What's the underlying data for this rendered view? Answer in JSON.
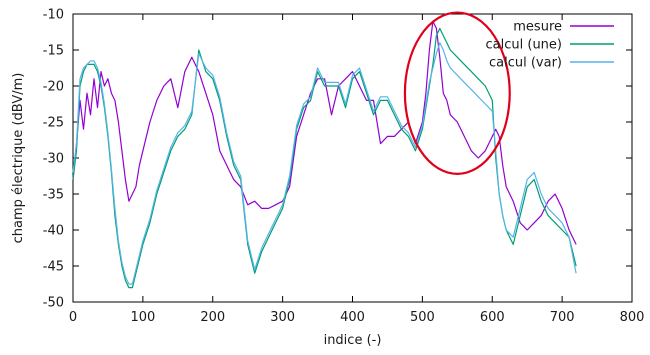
{
  "chart_data": {
    "type": "line",
    "title": "",
    "xlabel": "indice (-)",
    "ylabel": "champ électrique (dBV/m)",
    "xlim": [
      0,
      800
    ],
    "ylim": [
      -50,
      -10
    ],
    "xticks": [
      0,
      100,
      200,
      300,
      400,
      500,
      600,
      700,
      800
    ],
    "yticks": [
      -10,
      -15,
      -20,
      -25,
      -30,
      -35,
      -40,
      -45,
      -50
    ],
    "grid": false,
    "legend_position": "top-right",
    "annotation": {
      "shape": "ellipse",
      "color": "#e0001a",
      "center": [
        550,
        -21
      ],
      "radius": [
        75,
        11.2
      ]
    },
    "series": [
      {
        "name": "mesure",
        "color": "#9400d3",
        "x": [
          0,
          5,
          10,
          15,
          20,
          25,
          30,
          35,
          40,
          45,
          50,
          55,
          60,
          65,
          70,
          75,
          80,
          85,
          90,
          95,
          100,
          110,
          120,
          130,
          140,
          150,
          160,
          170,
          180,
          190,
          200,
          210,
          220,
          230,
          240,
          250,
          260,
          270,
          280,
          290,
          300,
          310,
          320,
          330,
          340,
          350,
          360,
          370,
          380,
          390,
          400,
          410,
          420,
          430,
          440,
          450,
          460,
          470,
          480,
          490,
          500,
          505,
          510,
          515,
          520,
          525,
          530,
          535,
          540,
          550,
          560,
          570,
          580,
          590,
          600,
          605,
          610,
          615,
          620,
          630,
          640,
          650,
          660,
          670,
          680,
          690,
          700,
          710,
          720
        ],
        "y": [
          -33,
          -28,
          -22,
          -26,
          -21,
          -24,
          -19,
          -23,
          -18,
          -20,
          -19,
          -21,
          -22,
          -25,
          -29,
          -33,
          -36,
          -35,
          -34,
          -31,
          -29,
          -25,
          -22,
          -20,
          -19,
          -23,
          -18,
          -16,
          -18,
          -21,
          -24,
          -29,
          -31,
          -33,
          -34,
          -36.5,
          -36,
          -37,
          -37,
          -36.5,
          -36,
          -34,
          -27,
          -24,
          -21,
          -19,
          -19,
          -24,
          -20,
          -19,
          -18,
          -20,
          -22,
          -22,
          -28,
          -27,
          -27,
          -26,
          -25,
          -28,
          -25,
          -21,
          -15,
          -11,
          -12,
          -16,
          -21,
          -22,
          -24,
          -25,
          -27,
          -29,
          -30,
          -29,
          -27,
          -26,
          -27,
          -31,
          -34,
          -36,
          -39,
          -40,
          -39,
          -38,
          -36,
          -35,
          -37,
          -40,
          -42
        ]
      },
      {
        "name": "calcul (une)",
        "color": "#009e73",
        "x": [
          0,
          5,
          10,
          15,
          20,
          25,
          30,
          35,
          40,
          45,
          50,
          55,
          60,
          65,
          70,
          75,
          80,
          85,
          90,
          95,
          100,
          110,
          120,
          130,
          140,
          150,
          160,
          170,
          180,
          190,
          200,
          210,
          220,
          230,
          240,
          250,
          260,
          270,
          280,
          290,
          300,
          310,
          320,
          330,
          340,
          350,
          360,
          370,
          380,
          390,
          400,
          410,
          420,
          430,
          440,
          450,
          460,
          470,
          480,
          490,
          500,
          505,
          510,
          515,
          520,
          525,
          530,
          535,
          540,
          550,
          560,
          570,
          580,
          590,
          600,
          605,
          610,
          615,
          620,
          630,
          640,
          650,
          660,
          670,
          680,
          690,
          700,
          710,
          720
        ],
        "y": [
          -33,
          -29,
          -20,
          -18,
          -17,
          -17,
          -17,
          -18,
          -20,
          -23,
          -27,
          -32,
          -38,
          -42,
          -45,
          -47,
          -48,
          -48,
          -46,
          -44,
          -42,
          -39,
          -35,
          -32,
          -29,
          -27,
          -26,
          -24,
          -15,
          -18,
          -19,
          -22,
          -27,
          -31,
          -33,
          -42,
          -46,
          -43,
          -41,
          -39,
          -37,
          -33,
          -26,
          -23,
          -22,
          -18,
          -20,
          -20,
          -20,
          -23,
          -19,
          -18,
          -21,
          -24,
          -22,
          -22,
          -24,
          -26,
          -27,
          -29,
          -26,
          -23,
          -20,
          -17,
          -13,
          -12,
          -13,
          -14,
          -15,
          -16,
          -17,
          -18,
          -19,
          -20,
          -22,
          -30,
          -35,
          -38,
          -40,
          -42,
          -38,
          -34,
          -33,
          -36,
          -38,
          -39,
          -40,
          -41,
          -45
        ]
      },
      {
        "name": "calcul (var)",
        "color": "#56b4e9",
        "x": [
          0,
          5,
          10,
          15,
          20,
          25,
          30,
          35,
          40,
          45,
          50,
          55,
          60,
          65,
          70,
          75,
          80,
          85,
          90,
          95,
          100,
          110,
          120,
          130,
          140,
          150,
          160,
          170,
          180,
          190,
          200,
          210,
          220,
          230,
          240,
          250,
          260,
          270,
          280,
          290,
          300,
          310,
          320,
          330,
          340,
          350,
          360,
          370,
          380,
          390,
          400,
          410,
          420,
          430,
          440,
          450,
          460,
          470,
          480,
          490,
          500,
          505,
          510,
          515,
          520,
          525,
          530,
          535,
          540,
          550,
          560,
          570,
          580,
          590,
          600,
          605,
          610,
          615,
          620,
          630,
          640,
          650,
          660,
          670,
          680,
          690,
          700,
          710,
          720
        ],
        "y": [
          -32,
          -28,
          -19,
          -17.5,
          -17,
          -16.5,
          -16.5,
          -17.5,
          -19.5,
          -22.5,
          -26.5,
          -31.5,
          -37,
          -41.5,
          -44.5,
          -46.5,
          -47.5,
          -47.5,
          -45.5,
          -43.5,
          -41.5,
          -38.5,
          -34.5,
          -31.5,
          -28.5,
          -26.5,
          -25.5,
          -23.5,
          -15.5,
          -17.5,
          -18.5,
          -21.5,
          -26.5,
          -30.5,
          -32.5,
          -41.5,
          -45.5,
          -42.5,
          -40.5,
          -38.5,
          -36.5,
          -32.5,
          -25.5,
          -22.5,
          -21.5,
          -17.5,
          -19.5,
          -19.5,
          -19.5,
          -22.5,
          -18.5,
          -17.5,
          -20.5,
          -23.5,
          -21.5,
          -21.5,
          -23.5,
          -25.5,
          -26.5,
          -28.5,
          -25.5,
          -22.5,
          -19.5,
          -17.5,
          -15.5,
          -14,
          -15,
          -16.5,
          -17.5,
          -18.5,
          -19.5,
          -20.5,
          -21.5,
          -22.5,
          -23.5,
          -29,
          -35,
          -38,
          -40,
          -41,
          -37,
          -33,
          -32,
          -35,
          -37,
          -38,
          -39,
          -41,
          -46
        ]
      }
    ]
  }
}
